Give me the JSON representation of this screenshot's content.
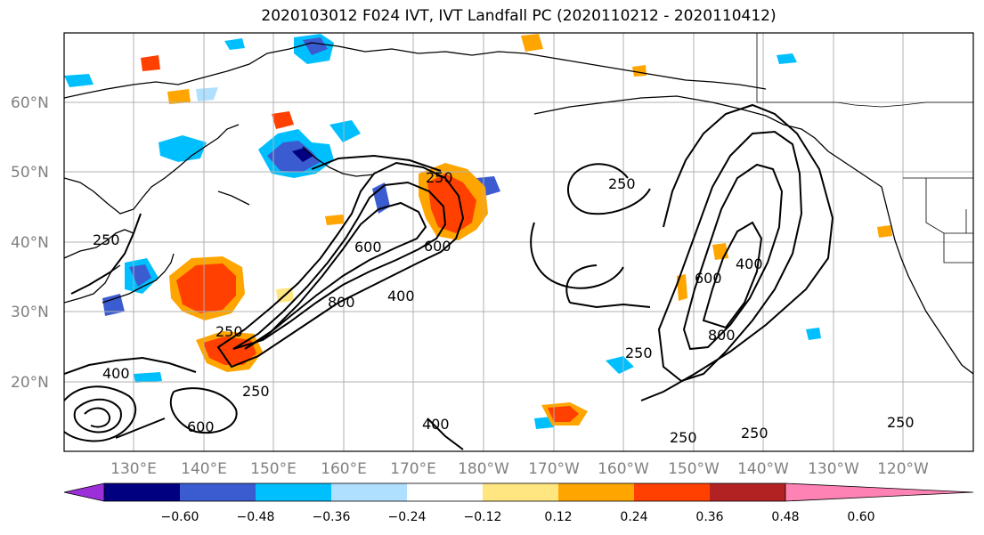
{
  "title": "2020103012 F024 IVT, IVT Landfall PC (2020110212 - 2020110412)",
  "map": {
    "lat_labels": [
      "60°N",
      "50°N",
      "40°N",
      "30°N",
      "20°N"
    ],
    "lon_labels": [
      "130°E",
      "140°E",
      "150°E",
      "160°E",
      "170°E",
      "180°W",
      "170°W",
      "160°W",
      "150°W",
      "140°W",
      "130°W",
      "120°W"
    ],
    "contour_labels": [
      "250",
      "250",
      "600",
      "400",
      "800",
      "600",
      "250",
      "400",
      "600",
      "800",
      "400",
      "600",
      "250",
      "250",
      "250",
      "250",
      "400",
      "250",
      "250"
    ]
  },
  "colorbar": {
    "ticks": [
      "−0.60",
      "−0.48",
      "−0.36",
      "−0.24",
      "−0.12",
      "0.12",
      "0.24",
      "0.36",
      "0.48",
      "0.60"
    ],
    "colors": [
      "#9b30d8",
      "#000080",
      "#3b5bd0",
      "#00bfff",
      "#b0e0ff",
      "#ffffff",
      "#ffe680",
      "#ffa500",
      "#ff4000",
      "#b22222",
      "#ff82b4"
    ]
  }
}
